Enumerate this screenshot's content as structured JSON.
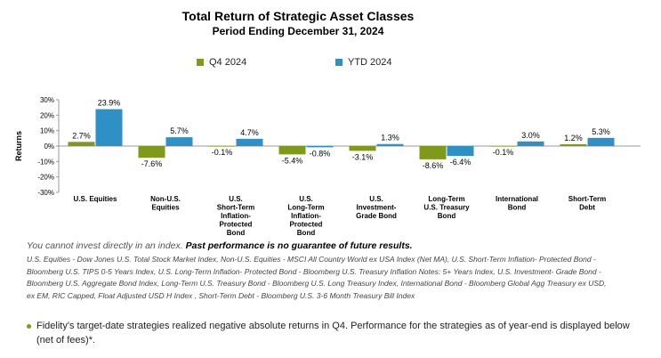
{
  "header": {
    "title": "Total Return of Strategic Asset Classes",
    "subtitle": "Period Ending December 31, 2024"
  },
  "colors": {
    "q4": "#7f9a1a",
    "ytd": "#2f90c6",
    "axis": "#999999",
    "bullet": "#7f9a1a"
  },
  "chart_data": {
    "type": "bar",
    "title": "Total Return of Strategic Asset Classes",
    "subtitle": "Period Ending December 31, 2024",
    "ylabel": "Returns",
    "xlabel": "",
    "ylim": [
      -30,
      30
    ],
    "yticks": [
      30,
      20,
      10,
      0,
      -10,
      -20,
      -30
    ],
    "ytick_labels": [
      "30%",
      "20%",
      "10%",
      "0%",
      "-10%",
      "-20%",
      "-30%"
    ],
    "legend_position": "top",
    "grid": false,
    "categories": [
      "U.S. Equities",
      "Non-U.S. Equities",
      "U.S. Short-Term Inflation-Protected Bond",
      "U.S. Long-Term Inflation-Protected Bond",
      "U.S. Investment-Grade Bond",
      "Long-Term U.S. Treasury Bond",
      "International Bond",
      "Short-Term Debt"
    ],
    "category_lines": [
      [
        "U.S. Equities"
      ],
      [
        "Non-U.S.",
        "Equities"
      ],
      [
        "U.S.",
        "Short-Term",
        "Inflation-",
        "Protected",
        "Bond"
      ],
      [
        "U.S.",
        "Long-Term",
        "Inflation-",
        "Protected",
        "Bond"
      ],
      [
        "U.S.",
        "Investment-",
        "Grade Bond"
      ],
      [
        "Long-Term",
        "U.S. Treasury",
        "Bond"
      ],
      [
        "International",
        "Bond"
      ],
      [
        "Short-Term",
        "Debt"
      ]
    ],
    "series": [
      {
        "name": "Q4 2024",
        "color": "#7f9a1a",
        "values": [
          2.7,
          -7.6,
          -0.1,
          -5.4,
          -3.1,
          -8.6,
          -0.1,
          1.2
        ],
        "labels": [
          "2.7%",
          "-7.6%",
          "-0.1%",
          "-5.4%",
          "-3.1%",
          "-8.6%",
          "-0.1%",
          "1.2%"
        ]
      },
      {
        "name": "YTD 2024",
        "color": "#2f90c6",
        "values": [
          23.9,
          5.7,
          4.7,
          -0.8,
          1.3,
          -6.4,
          3.0,
          5.3
        ],
        "labels": [
          "23.9%",
          "5.7%",
          "4.7%",
          "-0.8%",
          "1.3%",
          "-6.4%",
          "3.0%",
          "5.3%"
        ]
      }
    ]
  },
  "footnote": {
    "disclaimer": "You cannot invest directly in an index.",
    "disclaimer_bold": "Past performance is no guarantee of future results.",
    "sources": [
      "U.S. Equities - Dow Jones U.S. Total Stock Market Index, Non-U.S. Equities - MSCI All Country World ex USA Index (Net MA), U.S. Short-Term Inflation- Protected Bond -",
      "Bloomberg U.S. TIPS 0-5 Years Index, U.S. Long-Term Inflation- Protected Bond - Bloomberg U.S. Treasury Inflation Notes: 5+ Years Index, U.S. Investment- Grade Bond -",
      "Bloomberg U.S. Aggregate Bond Index, Long-Term U.S. Treasury Bond - Bloomberg U.S. Long Treasury Index, International Bond - Bloomberg Global Agg Treasury ex USD,",
      "ex EM, RIC Capped, Float Adjusted USD H Index , Short-Term Debt - Bloomberg U.S. 3-6 Month Treasury Bill Index"
    ]
  },
  "bullet": {
    "text": "Fidelity's target-date strategies realized negative absolute returns in Q4. Performance for the strategies as of year-end is displayed below (net of fees)*."
  }
}
